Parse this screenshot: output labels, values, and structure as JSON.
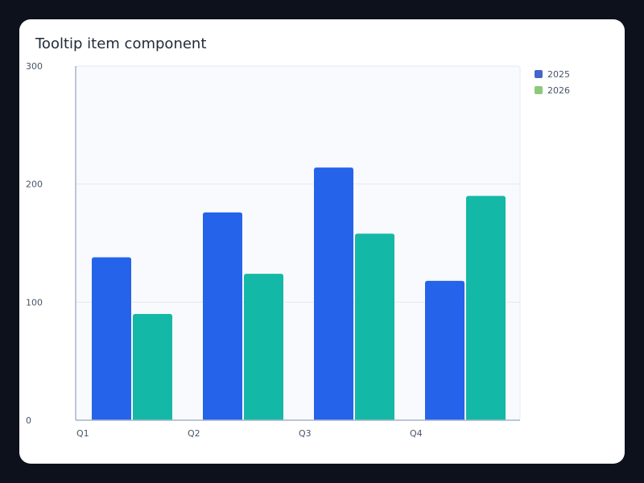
{
  "title": "Tooltip item component",
  "colors": {
    "series_2025_bar": "#2563eb",
    "series_2026_bar": "#14b8a6",
    "legend_2025": "#4566c8",
    "legend_2026": "#8cc97a",
    "plot_bg": "#f8fafd",
    "grid": "#e5e9f0",
    "axis": "#a6b4cc"
  },
  "legend": [
    {
      "label": "2025",
      "color": "#4566c8"
    },
    {
      "label": "2026",
      "color": "#8cc97a"
    }
  ],
  "chart_data": {
    "type": "bar",
    "title": "Tooltip item component",
    "xlabel": "",
    "ylabel": "",
    "categories": [
      "Q1",
      "Q2",
      "Q3",
      "Q4"
    ],
    "series": [
      {
        "name": "2025",
        "values": [
          138,
          176,
          214,
          118
        ]
      },
      {
        "name": "2026",
        "values": [
          90,
          124,
          158,
          190
        ]
      }
    ],
    "ylim": [
      0,
      300
    ],
    "yticks": [
      0,
      100,
      200,
      300
    ],
    "grid": true,
    "legend_position": "top-right"
  }
}
